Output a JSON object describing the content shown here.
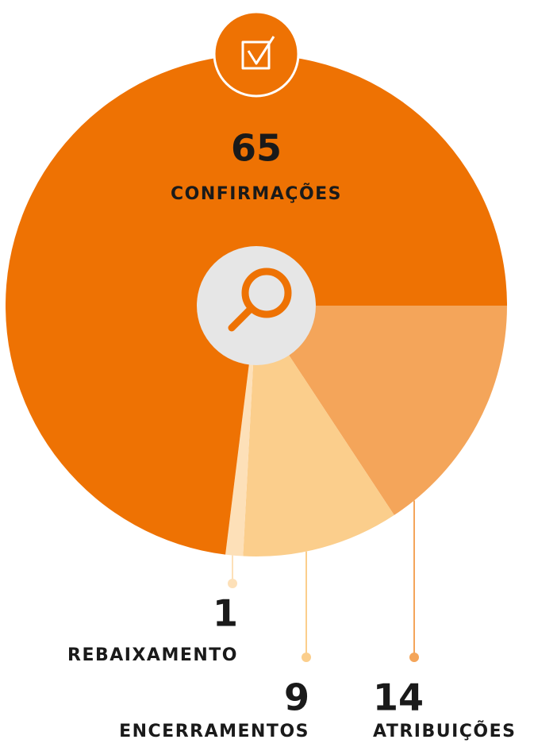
{
  "chart_data": {
    "type": "pie",
    "categories": [
      "ATRIBUIÇÕES",
      "ENCERRAMENTOS",
      "REBAIXAMENTO",
      "CONFIRMAÇÕES"
    ],
    "values": [
      14,
      9,
      1,
      65
    ],
    "colors": [
      "#F4A55A",
      "#FBCE8C",
      "#FDE0B8",
      "#EE7203"
    ]
  }
}
